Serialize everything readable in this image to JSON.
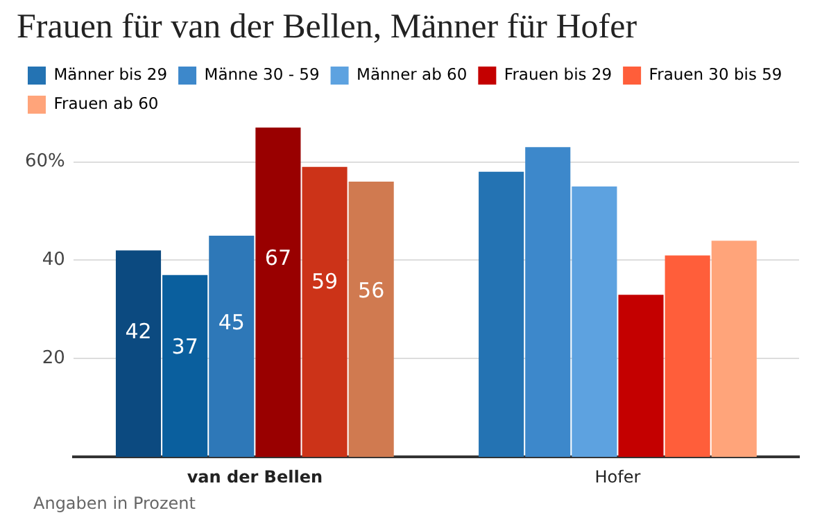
{
  "chart_data": {
    "type": "bar",
    "title": "Frauen für van der Bellen, Männer für Hofer",
    "categories": [
      "van der Bellen",
      "Hofer"
    ],
    "series": [
      {
        "name": "Männer bis 29",
        "color": "#2473b3",
        "colors": [
          "#0c4a80",
          "#2473b3"
        ],
        "values": [
          42,
          58
        ],
        "value_labels": [
          "42",
          null
        ]
      },
      {
        "name": "Männe 30 - 59",
        "color": "#3d88cb",
        "colors": [
          "#0a5f9e",
          "#3d88cb"
        ],
        "values": [
          37,
          63
        ],
        "value_labels": [
          "37",
          null
        ]
      },
      {
        "name": "Männer ab 60",
        "color": "#5da2e0",
        "colors": [
          "#2e78b8",
          "#5da2e0"
        ],
        "values": [
          45,
          55
        ],
        "value_labels": [
          "45",
          null
        ]
      },
      {
        "name": "Frauen bis 29",
        "color": "#c40000",
        "colors": [
          "#990000",
          "#c40000"
        ],
        "values": [
          67,
          33
        ],
        "value_labels": [
          "67",
          null
        ]
      },
      {
        "name": "Frauen 30 bis 59",
        "color": "#ff5e3a",
        "colors": [
          "#cc3318",
          "#ff5e3a"
        ],
        "values": [
          59,
          41
        ],
        "value_labels": [
          "59",
          null
        ]
      },
      {
        "name": "Frauen ab 60",
        "color": "#ffa47a",
        "colors": [
          "#d07a50",
          "#ffa47a"
        ],
        "values": [
          56,
          44
        ],
        "value_labels": [
          "56",
          null
        ]
      }
    ],
    "ylim": [
      0,
      67
    ],
    "yticks": [
      20,
      40,
      {
        "value": 60,
        "label": "60%"
      }
    ],
    "grid": "y",
    "legend": "top",
    "annotations": [
      "Angaben in Prozent"
    ]
  }
}
